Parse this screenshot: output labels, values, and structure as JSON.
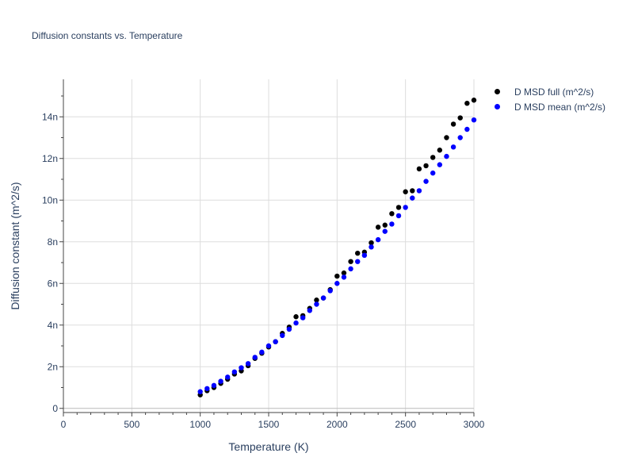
{
  "chart_data": {
    "type": "scatter",
    "title": "Diffusion constants vs. Temperature",
    "xlabel": "Temperature (K)",
    "ylabel": "Diffusion constant (m^2/s)",
    "xlim": [
      0,
      3000
    ],
    "ylim": [
      -2e-10,
      1.58e-08
    ],
    "x_ticks": [
      0,
      500,
      1000,
      1500,
      2000,
      2500,
      3000
    ],
    "x_tick_labels": [
      "0",
      "500",
      "1000",
      "1500",
      "2000",
      "2500",
      "3000"
    ],
    "y_ticks": [
      0,
      2e-09,
      4e-09,
      6e-09,
      8e-09,
      1e-08,
      1.2e-08,
      1.4e-08
    ],
    "y_tick_labels": [
      "0",
      "2n",
      "4n",
      "6n",
      "8n",
      "10n",
      "12n",
      "14n"
    ],
    "grid": true,
    "legend_position": "top-right",
    "x": [
      1000,
      1050,
      1100,
      1150,
      1200,
      1250,
      1300,
      1350,
      1400,
      1450,
      1500,
      1550,
      1600,
      1650,
      1700,
      1750,
      1800,
      1850,
      1900,
      1950,
      2000,
      2050,
      2100,
      2150,
      2200,
      2250,
      2300,
      2350,
      2400,
      2450,
      2500,
      2550,
      2600,
      2650,
      2700,
      2750,
      2800,
      2850,
      2900,
      2950,
      3000
    ],
    "series": [
      {
        "name": "D MSD full (m^2/s)",
        "color": "#000000",
        "values": [
          6.5e-10,
          8.5e-10,
          1e-09,
          1.2e-09,
          1.4e-09,
          1.65e-09,
          1.8e-09,
          2.05e-09,
          2.4e-09,
          2.65e-09,
          2.95e-09,
          3.2e-09,
          3.6e-09,
          3.9e-09,
          4.4e-09,
          4.45e-09,
          4.8e-09,
          5.2e-09,
          5.3e-09,
          5.7e-09,
          6.35e-09,
          6.5e-09,
          7.05e-09,
          7.45e-09,
          7.5e-09,
          7.95e-09,
          8.7e-09,
          8.8e-09,
          9.35e-09,
          9.65e-09,
          1.04e-08,
          1.045e-08,
          1.15e-08,
          1.165e-08,
          1.205e-08,
          1.24e-08,
          1.3e-08,
          1.365e-08,
          1.395e-08,
          1.465e-08,
          1.48e-08
        ]
      },
      {
        "name": "D MSD mean (m^2/s)",
        "color": "#0000ff",
        "values": [
          8e-10,
          9.5e-10,
          1.1e-09,
          1.3e-09,
          1.5e-09,
          1.75e-09,
          1.95e-09,
          2.15e-09,
          2.45e-09,
          2.7e-09,
          3e-09,
          3.2e-09,
          3.5e-09,
          3.8e-09,
          4.1e-09,
          4.35e-09,
          4.7e-09,
          5e-09,
          5.3e-09,
          5.65e-09,
          6e-09,
          6.3e-09,
          6.7e-09,
          7.05e-09,
          7.35e-09,
          7.75e-09,
          8.1e-09,
          8.5e-09,
          8.85e-09,
          9.25e-09,
          9.65e-09,
          1.01e-08,
          1.045e-08,
          1.09e-08,
          1.13e-08,
          1.17e-08,
          1.21e-08,
          1.255e-08,
          1.3e-08,
          1.34e-08,
          1.385e-08
        ]
      }
    ]
  }
}
